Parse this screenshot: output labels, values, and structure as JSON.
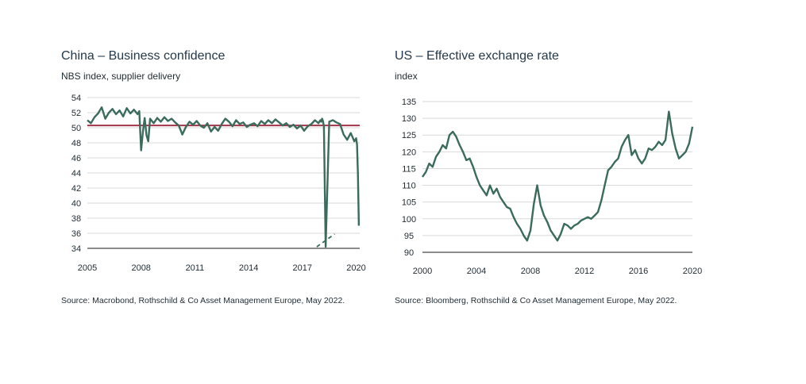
{
  "colors": {
    "series": "#3a6b5c",
    "reference": "#a3344a",
    "grid": "#d9d9d9",
    "axis": "#666666"
  },
  "chart_data": [
    {
      "type": "line",
      "title": "China – Business confidence",
      "subtitle": "NBS index, supplier delivery",
      "source": "Source: Macrobond, Rothschild & Co Asset Management Europe, May 2022.",
      "xlabel": "",
      "ylabel": "",
      "xlim": [
        2005,
        2020.2
      ],
      "ylim": [
        34,
        54
      ],
      "y_ticks": [
        54,
        52,
        50,
        48,
        46,
        44,
        42,
        40,
        38,
        36,
        34
      ],
      "x_ticks": [
        2005,
        2008,
        2011,
        2014,
        2017,
        2020
      ],
      "reference_line": 50.3,
      "trend_annotation": {
        "x": [
          2017.8,
          2018.8
        ],
        "y": [
          34.2,
          35.9
        ]
      },
      "series": [
        {
          "name": "NBS index, supplier delivery",
          "x": [
            2005.0,
            2005.2,
            2005.4,
            2005.6,
            2005.8,
            2006.0,
            2006.2,
            2006.4,
            2006.6,
            2006.8,
            2007.0,
            2007.2,
            2007.4,
            2007.6,
            2007.8,
            2007.9,
            2008.0,
            2008.1,
            2008.2,
            2008.3,
            2008.4,
            2008.5,
            2008.7,
            2008.9,
            2009.1,
            2009.3,
            2009.5,
            2009.7,
            2009.9,
            2010.1,
            2010.3,
            2010.5,
            2010.7,
            2010.9,
            2011.1,
            2011.3,
            2011.5,
            2011.7,
            2011.9,
            2012.1,
            2012.3,
            2012.5,
            2012.7,
            2012.9,
            2013.1,
            2013.3,
            2013.5,
            2013.7,
            2013.9,
            2014.1,
            2014.3,
            2014.5,
            2014.7,
            2014.9,
            2015.1,
            2015.3,
            2015.5,
            2015.7,
            2015.9,
            2016.1,
            2016.3,
            2016.5,
            2016.7,
            2016.9,
            2017.1,
            2017.3,
            2017.5,
            2017.7,
            2017.9,
            2018.0,
            2018.05,
            2018.1,
            2018.15,
            2018.2,
            2018.3,
            2018.5,
            2018.7,
            2018.9,
            2019.1,
            2019.3,
            2019.5,
            2019.7,
            2019.9,
            2020.0,
            2020.05,
            2020.1,
            2020.15
          ],
          "values": [
            51.0,
            50.6,
            51.4,
            51.9,
            52.7,
            51.2,
            52.0,
            52.5,
            51.8,
            52.3,
            51.5,
            52.6,
            51.9,
            52.4,
            51.8,
            52.2,
            47.0,
            49.5,
            51.3,
            49.0,
            48.2,
            51.2,
            50.6,
            51.3,
            50.8,
            51.4,
            50.9,
            51.2,
            50.7,
            50.3,
            49.1,
            50.1,
            50.8,
            50.4,
            50.9,
            50.3,
            50.0,
            50.6,
            49.5,
            50.1,
            49.6,
            50.5,
            51.2,
            50.8,
            50.2,
            51.0,
            50.5,
            50.7,
            50.1,
            50.4,
            50.6,
            50.2,
            50.9,
            50.5,
            51.0,
            50.6,
            51.1,
            50.7,
            50.3,
            50.6,
            50.1,
            50.4,
            49.9,
            50.3,
            49.6,
            50.2,
            50.5,
            51.0,
            50.6,
            51.0,
            50.8,
            51.2,
            50.9,
            50.2,
            34.2,
            50.8,
            51.0,
            50.7,
            50.5,
            49.1,
            48.4,
            49.3,
            48.2,
            48.6,
            47.8,
            44.0,
            37.0
          ]
        }
      ]
    },
    {
      "type": "line",
      "title": "US – Effective exchange rate",
      "subtitle": "index",
      "source": "Source: Bloomberg, Rothschild & Co Asset Management Europe, May 2022.",
      "xlabel": "",
      "ylabel": "",
      "xlim": [
        2000,
        2020
      ],
      "ylim": [
        90,
        135
      ],
      "y_ticks": [
        135,
        130,
        125,
        120,
        115,
        110,
        105,
        100,
        95,
        90
      ],
      "x_ticks": [
        2000,
        2004,
        2008,
        2012,
        2016,
        2020
      ],
      "series": [
        {
          "name": "index",
          "x": [
            2000.0,
            2000.25,
            2000.5,
            2000.75,
            2001.0,
            2001.25,
            2001.5,
            2001.75,
            2002.0,
            2002.25,
            2002.5,
            2002.75,
            2003.0,
            2003.25,
            2003.5,
            2003.75,
            2004.0,
            2004.25,
            2004.5,
            2004.75,
            2005.0,
            2005.25,
            2005.5,
            2005.75,
            2006.0,
            2006.25,
            2006.5,
            2006.75,
            2007.0,
            2007.25,
            2007.5,
            2007.75,
            2008.0,
            2008.25,
            2008.5,
            2008.75,
            2009.0,
            2009.25,
            2009.5,
            2009.75,
            2010.0,
            2010.25,
            2010.5,
            2010.75,
            2011.0,
            2011.25,
            2011.5,
            2011.75,
            2012.0,
            2012.25,
            2012.5,
            2012.75,
            2013.0,
            2013.25,
            2013.5,
            2013.75,
            2014.0,
            2014.25,
            2014.5,
            2014.75,
            2015.0,
            2015.25,
            2015.5,
            2015.75,
            2016.0,
            2016.25,
            2016.5,
            2016.75,
            2017.0,
            2017.25,
            2017.5,
            2017.75,
            2018.0,
            2018.25,
            2018.5,
            2018.75,
            2019.0,
            2019.25,
            2019.5,
            2019.75,
            2020.0
          ],
          "values": [
            112.5,
            114.0,
            116.5,
            115.5,
            118.5,
            120.0,
            122.0,
            121.0,
            125.0,
            126.0,
            124.5,
            122.0,
            120.0,
            117.5,
            118.0,
            115.5,
            112.5,
            110.0,
            108.5,
            107.0,
            110.0,
            107.5,
            109.0,
            106.5,
            105.0,
            103.5,
            103.0,
            100.5,
            98.5,
            97.0,
            95.0,
            93.5,
            96.5,
            104.5,
            110.0,
            104.0,
            101.0,
            99.0,
            96.5,
            95.0,
            93.5,
            95.5,
            98.5,
            98.0,
            97.0,
            98.0,
            98.5,
            99.5,
            100.0,
            100.5,
            100.0,
            101.0,
            102.0,
            105.5,
            110.0,
            114.5,
            115.5,
            117.0,
            118.0,
            121.5,
            123.5,
            125.0,
            119.0,
            120.5,
            118.0,
            116.5,
            118.0,
            121.0,
            120.5,
            121.5,
            123.0,
            122.0,
            123.5,
            132.0,
            125.5,
            121.0,
            118.0,
            119.0,
            120.0,
            122.5,
            127.5
          ]
        }
      ]
    }
  ]
}
